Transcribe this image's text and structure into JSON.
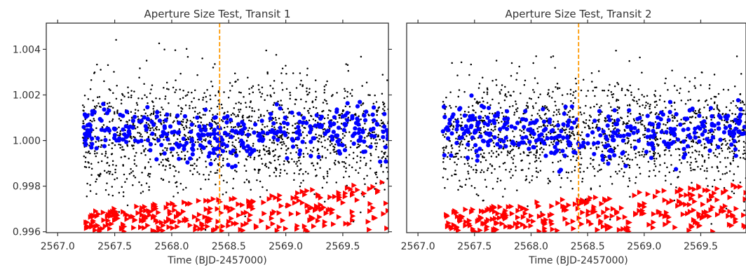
{
  "chart_data": [
    {
      "type": "scatter",
      "title": "Aperture Size Test, Transit 1",
      "xlabel": "Time (BJD-2457000)",
      "ylabel": "",
      "xlim": [
        2566.9,
        2569.9
      ],
      "ylim": [
        0.99596,
        1.00515
      ],
      "xticks": [
        "2567.0",
        "2567.5",
        "2568.0",
        "2568.5",
        "2569.0",
        "2569.5"
      ],
      "yticks": [
        "0.996",
        "0.998",
        "1.000",
        "1.002",
        "1.004"
      ],
      "vline_x": 2568.42,
      "series_style": [
        {
          "marker": "dot",
          "color": "#000000"
        },
        {
          "marker": "circle",
          "color": "#0000ff"
        },
        {
          "marker": "triangle-right",
          "color": "#ff0000"
        }
      ],
      "vline_color": "#ff9900",
      "x_start": 2567.22,
      "x_end": 2569.9
    },
    {
      "type": "scatter",
      "title": "Aperture Size Test, Transit 2",
      "xlabel": "Time (BJD-2457000)",
      "ylabel": "",
      "xlim": [
        2566.9,
        2569.9
      ],
      "ylim": [
        0.99596,
        1.00515
      ],
      "xticks": [
        "2567.0",
        "2567.5",
        "2568.0",
        "2568.5",
        "2569.0",
        "2569.5"
      ],
      "yticks": [],
      "vline_x": 2568.42,
      "series_style": [
        {
          "marker": "dot",
          "color": "#000000"
        },
        {
          "marker": "circle",
          "color": "#0000ff"
        },
        {
          "marker": "triangle-right",
          "color": "#ff0000"
        }
      ],
      "vline_color": "#ff9900",
      "x_start": 2567.22,
      "x_end": 2569.9
    }
  ]
}
